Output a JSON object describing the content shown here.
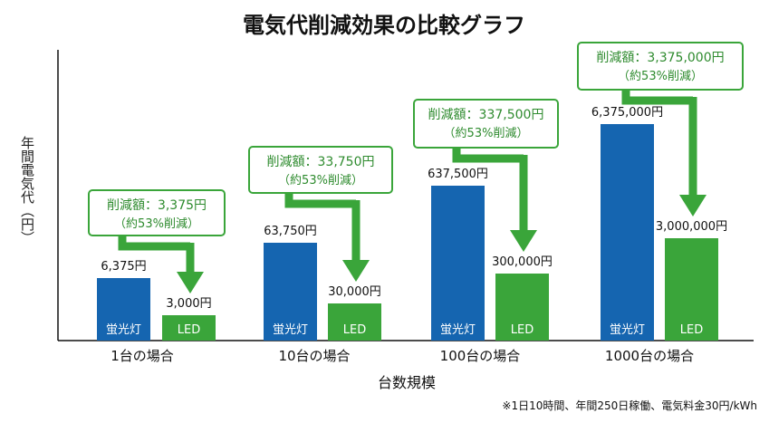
{
  "chart_data": {
    "type": "bar",
    "title": "電気代削減効果の比較グラフ",
    "xlabel": "台数規模",
    "ylabel": "年間電気代（円）",
    "categories": [
      "1台の場合",
      "10台の場合",
      "100台の場合",
      "1000台の場合"
    ],
    "series": [
      {
        "name": "蛍光灯",
        "values": [
          6375,
          63750,
          637500,
          6375000
        ],
        "labels": [
          "6,375円",
          "63,750円",
          "637,500円",
          "6,375,000円"
        ],
        "color": "#1565b0"
      },
      {
        "name": "LED",
        "values": [
          3000,
          30000,
          300000,
          3000000
        ],
        "labels": [
          "3,000円",
          "30,000円",
          "300,000円",
          "3,000,000円"
        ],
        "color": "#3aa53a"
      }
    ],
    "annotations": [
      {
        "line1": "削減額：3,375円",
        "line2": "（約53%削減）"
      },
      {
        "line1": "削減額：33,750円",
        "line2": "（約53%削減）"
      },
      {
        "line1": "削減額：337,500円",
        "line2": "（約53%削減）"
      },
      {
        "line1": "削減額：3,375,000円",
        "line2": "（約53%削減）"
      }
    ],
    "footnote": "※1日10時間、年間250日稼働、電気料金30円/kWh",
    "grid": false,
    "y_ticks_shown": false,
    "bar_scale": "illustrative (not proportional)"
  }
}
